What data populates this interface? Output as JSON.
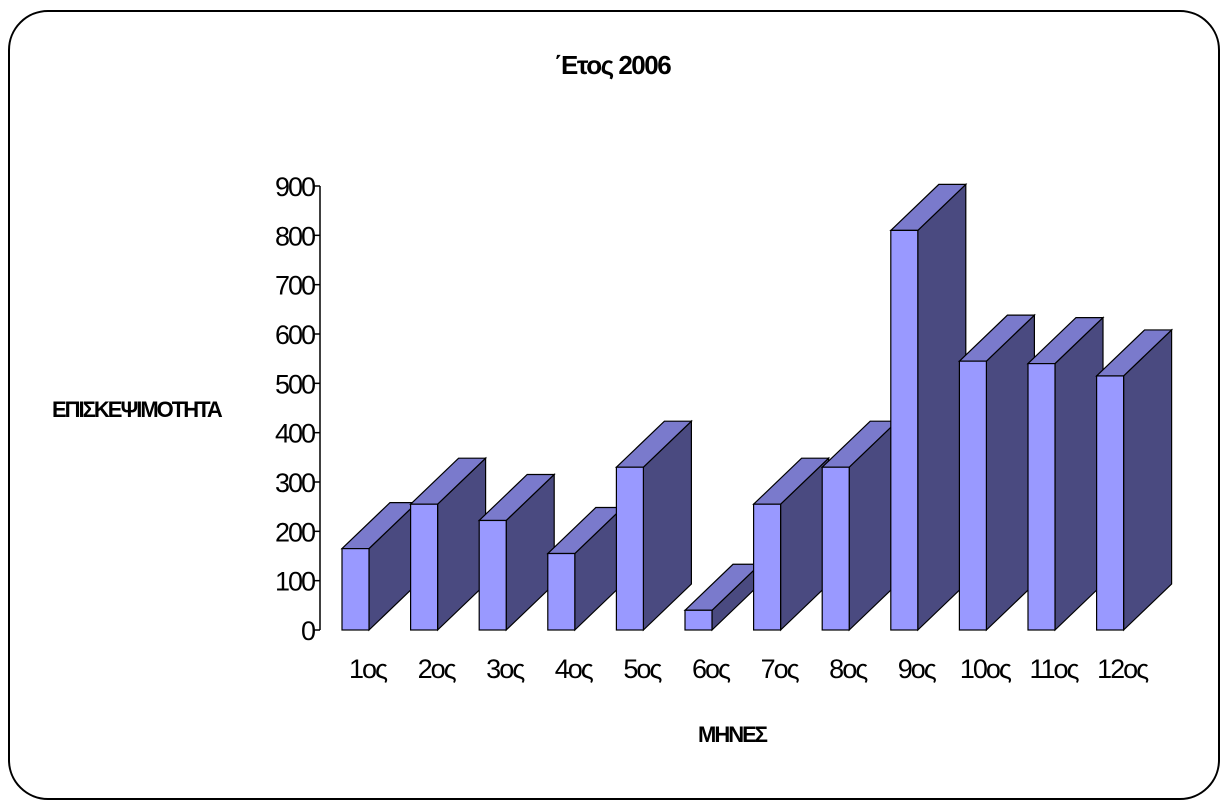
{
  "chart_data": {
    "type": "bar",
    "title": "΄Ετος 2006",
    "xlabel": "ΜΗΝΕΣ",
    "ylabel": "ΕΠΙΣΚΕΨΙΜΟΤΗΤΑ",
    "categories": [
      "1ος",
      "2ος",
      "3ος",
      "4ος",
      "5ος",
      "6ος",
      "7ος",
      "8ος",
      "9ος",
      "10ος",
      "11ος",
      "12ος"
    ],
    "values": [
      165,
      255,
      222,
      155,
      330,
      40,
      255,
      330,
      810,
      545,
      540,
      515
    ],
    "ylim": [
      0,
      900
    ],
    "yticks": [
      "0",
      "100",
      "200",
      "300",
      "400",
      "500",
      "600",
      "700",
      "800",
      "900"
    ],
    "grid": false,
    "legend": "none",
    "colors": {
      "front": "#9999ff",
      "top": "#7a7acc",
      "side": "#4a4a80",
      "stroke": "#000000"
    }
  }
}
